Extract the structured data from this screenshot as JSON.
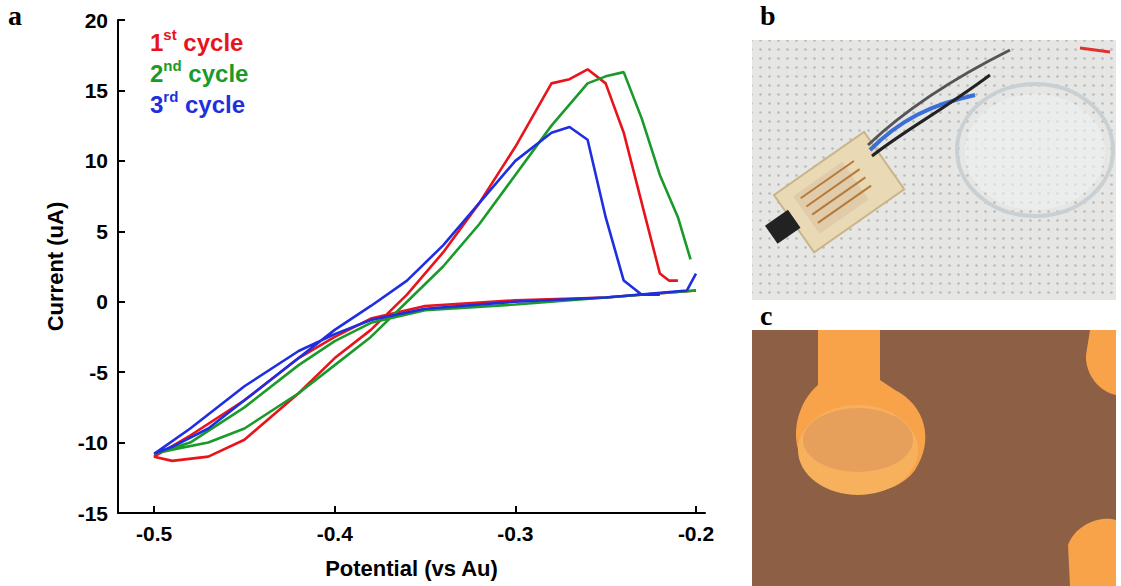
{
  "panel_labels": [
    "a",
    "b",
    "c"
  ],
  "chart_data": {
    "type": "line",
    "x_label": "Potential (vs Au)",
    "y_label": "Current (uA)",
    "xlim": [
      -0.52,
      -0.195
    ],
    "ylim": [
      -15,
      20
    ],
    "xticks": [
      -0.5,
      -0.4,
      -0.3,
      -0.2
    ],
    "yticks": [
      -15,
      -10,
      -5,
      0,
      5,
      10,
      15,
      20
    ],
    "grid": false,
    "legend": "top-left",
    "line_style": "solid",
    "series": [
      {
        "name": "1st cycle",
        "color": "#e8141b",
        "x": [
          -0.2,
          -0.25,
          -0.3,
          -0.35,
          -0.38,
          -0.4,
          -0.42,
          -0.45,
          -0.48,
          -0.5,
          -0.49,
          -0.47,
          -0.45,
          -0.42,
          -0.4,
          -0.38,
          -0.36,
          -0.34,
          -0.32,
          -0.3,
          -0.28,
          -0.27,
          -0.26,
          -0.25,
          -0.24,
          -0.23,
          -0.22,
          -0.215,
          -0.21
        ],
        "values": [
          0.8,
          0.3,
          0.1,
          -0.3,
          -1.2,
          -2.5,
          -4,
          -7,
          -9.5,
          -11,
          -11.3,
          -11,
          -9.8,
          -6.5,
          -4,
          -2,
          0.5,
          3.5,
          7,
          11,
          15.5,
          15.8,
          16.5,
          15.5,
          12,
          7,
          2,
          1.5,
          1.5
        ]
      },
      {
        "name": "2nd cycle",
        "color": "#1a9a2a",
        "x": [
          -0.2,
          -0.25,
          -0.3,
          -0.35,
          -0.38,
          -0.4,
          -0.42,
          -0.45,
          -0.48,
          -0.5,
          -0.49,
          -0.47,
          -0.45,
          -0.42,
          -0.4,
          -0.38,
          -0.36,
          -0.34,
          -0.32,
          -0.3,
          -0.28,
          -0.26,
          -0.25,
          -0.24,
          -0.23,
          -0.22,
          -0.21,
          -0.203
        ],
        "values": [
          0.8,
          0.3,
          -0.2,
          -0.6,
          -1.5,
          -2.8,
          -4.5,
          -7.5,
          -10,
          -10.8,
          -10.5,
          -10,
          -9,
          -6.5,
          -4.5,
          -2.5,
          0,
          2.5,
          5.5,
          9,
          12.5,
          15.5,
          16,
          16.3,
          13,
          9,
          6,
          3
        ]
      },
      {
        "name": "3rd cycle",
        "color": "#1f2ee0",
        "x": [
          -0.2,
          -0.205,
          -0.25,
          -0.3,
          -0.35,
          -0.38,
          -0.4,
          -0.42,
          -0.45,
          -0.48,
          -0.5,
          -0.49,
          -0.47,
          -0.45,
          -0.42,
          -0.4,
          -0.38,
          -0.36,
          -0.34,
          -0.32,
          -0.3,
          -0.28,
          -0.27,
          -0.26,
          -0.25,
          -0.24,
          -0.23,
          -0.22
        ],
        "values": [
          2,
          0.8,
          0.3,
          0,
          -0.5,
          -1.3,
          -2.3,
          -3.5,
          -6,
          -9,
          -10.8,
          -10.3,
          -9,
          -7,
          -4,
          -2,
          -0.3,
          1.5,
          4,
          7,
          10,
          12,
          12.4,
          11.5,
          6,
          1.5,
          0.5,
          0.5
        ]
      }
    ]
  }
}
